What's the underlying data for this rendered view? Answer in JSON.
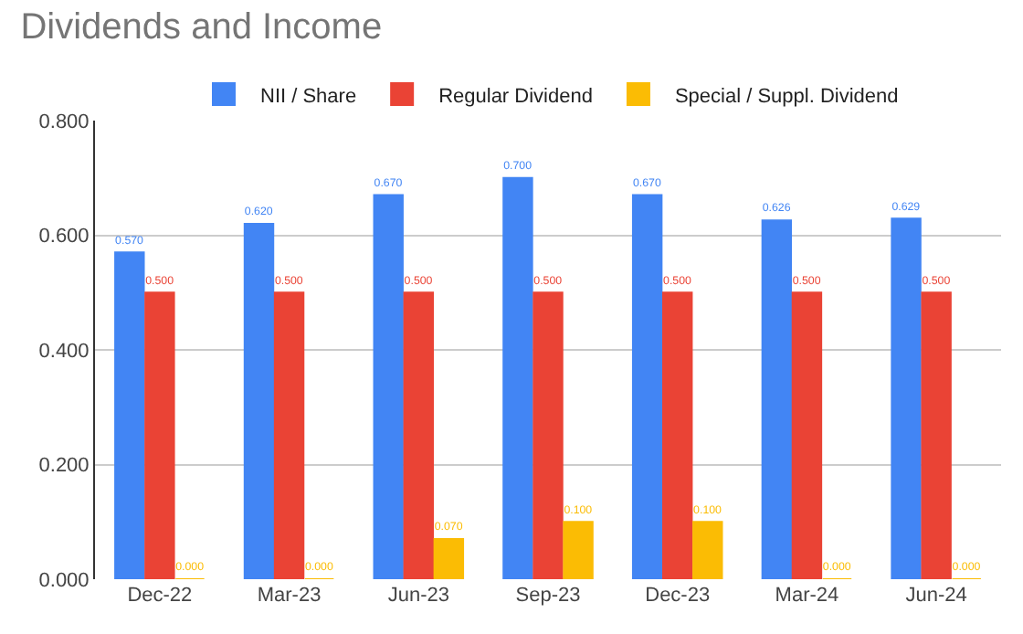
{
  "chart_data": {
    "type": "bar",
    "title": "Dividends and Income",
    "categories": [
      "Dec-22",
      "Mar-23",
      "Jun-23",
      "Sep-23",
      "Dec-23",
      "Mar-24",
      "Jun-24"
    ],
    "series": [
      {
        "name": "NII / Share",
        "color": "#4285f4",
        "values": [
          0.57,
          0.62,
          0.67,
          0.7,
          0.67,
          0.626,
          0.629
        ],
        "value_labels": [
          "0.570",
          "0.620",
          "0.670",
          "0.700",
          "0.670",
          "0.626",
          "0.629"
        ]
      },
      {
        "name": "Regular Dividend",
        "color": "#ea4335",
        "values": [
          0.5,
          0.5,
          0.5,
          0.5,
          0.5,
          0.5,
          0.5
        ],
        "value_labels": [
          "0.500",
          "0.500",
          "0.500",
          "0.500",
          "0.500",
          "0.500",
          "0.500"
        ]
      },
      {
        "name": "Special / Suppl. Dividend",
        "color": "#fbbc04",
        "values": [
          0,
          0,
          0.07,
          0.1,
          0.1,
          0,
          0
        ],
        "value_labels": [
          "0.000",
          "0.000",
          "0.070",
          "0.100",
          "0.100",
          "0.000",
          "0.000"
        ]
      }
    ],
    "ylim": [
      0,
      0.8
    ],
    "yticks": [
      {
        "value": 0,
        "label": "0.000"
      },
      {
        "value": 0.2,
        "label": "0.200"
      },
      {
        "value": 0.4,
        "label": "0.400"
      },
      {
        "value": 0.6,
        "label": "0.600"
      },
      {
        "value": 0.8,
        "label": "0.800"
      }
    ],
    "grid": "y",
    "legend": "top"
  }
}
